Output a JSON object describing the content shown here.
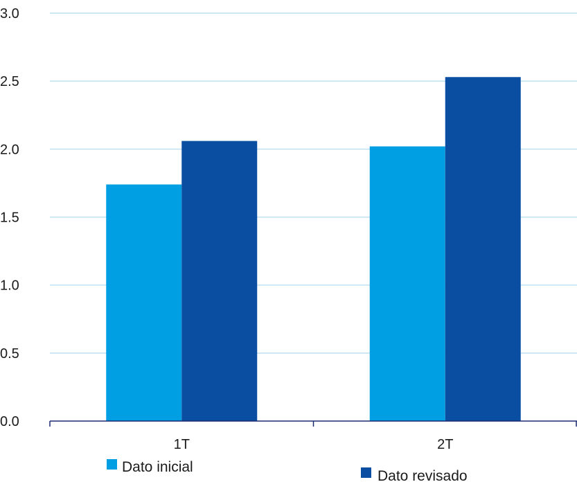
{
  "chart_data": {
    "type": "bar",
    "categories": [
      "1T",
      "2T"
    ],
    "series": [
      {
        "name": "Dato inicial",
        "values": [
          1.74,
          2.02
        ],
        "color": "#009fe3"
      },
      {
        "name": "Dato revisado",
        "values": [
          2.06,
          2.53
        ],
        "color": "#0a4ea2"
      }
    ],
    "ylim": [
      0,
      3.0
    ],
    "yticks": [
      "0.0",
      "0.5",
      "1.0",
      "1.5",
      "2.0",
      "2.5",
      "3.0"
    ],
    "grid": true,
    "grid_color": "#bfe0f2",
    "axis_color": "#1a2a6c",
    "legend_position": "bottom"
  }
}
